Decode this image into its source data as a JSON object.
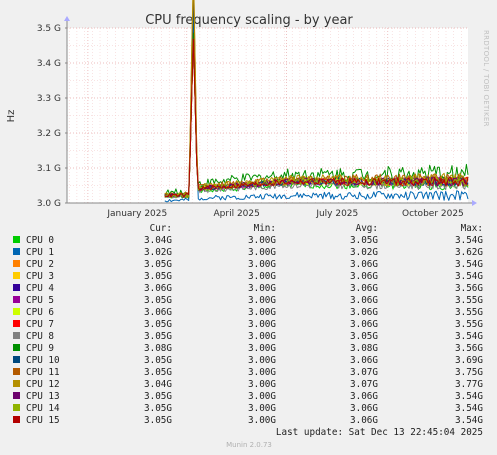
{
  "chart_data": {
    "type": "line",
    "title": "CPU frequency scaling - by year",
    "ylabel": "Hz",
    "side_label": "RRDTOOL / TOBI OETIKER",
    "y_ticks": [
      "3.0 G",
      "3.1 G",
      "3.2 G",
      "3.3 G",
      "3.4 G",
      "3.5 G"
    ],
    "y_tick_values": [
      3.0,
      3.1,
      3.2,
      3.3,
      3.4,
      3.5
    ],
    "ylim": [
      3.0,
      3.5
    ],
    "x_ticks": [
      "January 2025",
      "April 2025",
      "July 2025",
      "October 2025"
    ],
    "x_tick_dates": [
      "2025-01-01",
      "2025-04-01",
      "2025-07-01",
      "2025-10-01"
    ],
    "x_range": [
      "2024-12-13",
      "2025-12-13"
    ],
    "grid": true,
    "legend_headers": {
      "cur": "Cur:",
      "min": "Min:",
      "avg": "Avg:",
      "max": "Max:"
    },
    "data_start": "2025-03-12",
    "series": [
      {
        "name": "CPU  0",
        "color": "#00cc00",
        "cur": "3.04G",
        "min": "3.00G",
        "avg": "3.05G",
        "max": "3.54G",
        "base": 3.05
      },
      {
        "name": "CPU  1",
        "color": "#0066b3",
        "cur": "3.02G",
        "min": "3.00G",
        "avg": "3.02G",
        "max": "3.62G",
        "base": 3.02
      },
      {
        "name": "CPU  2",
        "color": "#ff8000",
        "cur": "3.05G",
        "min": "3.00G",
        "avg": "3.06G",
        "max": "3.54G",
        "base": 3.06
      },
      {
        "name": "CPU  3",
        "color": "#ffcc00",
        "cur": "3.05G",
        "min": "3.00G",
        "avg": "3.06G",
        "max": "3.54G",
        "base": 3.06
      },
      {
        "name": "CPU  4",
        "color": "#330099",
        "cur": "3.06G",
        "min": "3.00G",
        "avg": "3.06G",
        "max": "3.56G",
        "base": 3.06
      },
      {
        "name": "CPU  5",
        "color": "#990099",
        "cur": "3.05G",
        "min": "3.00G",
        "avg": "3.06G",
        "max": "3.55G",
        "base": 3.06
      },
      {
        "name": "CPU  6",
        "color": "#ccff00",
        "cur": "3.06G",
        "min": "3.00G",
        "avg": "3.06G",
        "max": "3.55G",
        "base": 3.06
      },
      {
        "name": "CPU  7",
        "color": "#ff0000",
        "cur": "3.05G",
        "min": "3.00G",
        "avg": "3.06G",
        "max": "3.55G",
        "base": 3.06
      },
      {
        "name": "CPU  8",
        "color": "#808080",
        "cur": "3.05G",
        "min": "3.00G",
        "avg": "3.05G",
        "max": "3.54G",
        "base": 3.05
      },
      {
        "name": "CPU  9",
        "color": "#008f00",
        "cur": "3.08G",
        "min": "3.00G",
        "avg": "3.08G",
        "max": "3.56G",
        "base": 3.08
      },
      {
        "name": "CPU  10",
        "color": "#00487d",
        "cur": "3.05G",
        "min": "3.00G",
        "avg": "3.06G",
        "max": "3.69G",
        "base": 3.06
      },
      {
        "name": "CPU  11",
        "color": "#b35a00",
        "cur": "3.05G",
        "min": "3.00G",
        "avg": "3.07G",
        "max": "3.75G",
        "base": 3.07
      },
      {
        "name": "CPU  12",
        "color": "#b38f00",
        "cur": "3.04G",
        "min": "3.00G",
        "avg": "3.07G",
        "max": "3.77G",
        "base": 3.07
      },
      {
        "name": "CPU  13",
        "color": "#6b006b",
        "cur": "3.05G",
        "min": "3.00G",
        "avg": "3.06G",
        "max": "3.54G",
        "base": 3.06
      },
      {
        "name": "CPU  14",
        "color": "#8fb300",
        "cur": "3.05G",
        "min": "3.00G",
        "avg": "3.06G",
        "max": "3.54G",
        "base": 3.06
      },
      {
        "name": "CPU  15",
        "color": "#b30000",
        "cur": "3.05G",
        "min": "3.00G",
        "avg": "3.06G",
        "max": "3.54G",
        "base": 3.06
      }
    ]
  },
  "last_update": "Last update: Sat Dec 13 22:45:04 2025",
  "footer": "Munin 2.0.73"
}
